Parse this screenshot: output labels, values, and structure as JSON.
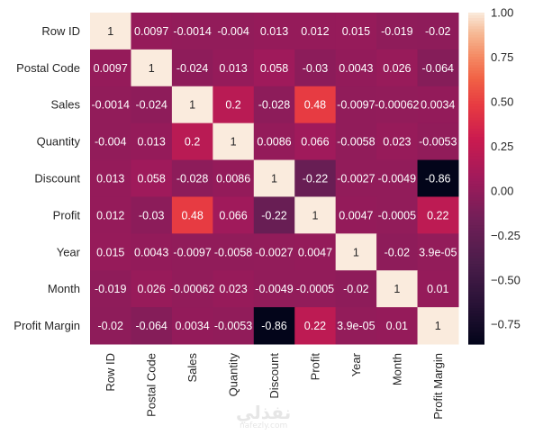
{
  "chart_data": {
    "type": "heatmap",
    "title": "",
    "xlabel": "",
    "ylabel": "",
    "rows": [
      "Row ID",
      "Postal Code",
      "Sales",
      "Quantity",
      "Discount",
      "Profit",
      "Year",
      "Month",
      "Profit Margin"
    ],
    "columns": [
      "Row ID",
      "Postal Code",
      "Sales",
      "Quantity",
      "Discount",
      "Profit",
      "Year",
      "Month",
      "Profit Margin"
    ],
    "values": [
      [
        1,
        0.0097,
        -0.0014,
        -0.004,
        0.013,
        0.012,
        0.015,
        -0.019,
        -0.02
      ],
      [
        0.0097,
        1,
        -0.024,
        0.013,
        0.058,
        -0.03,
        0.0043,
        0.026,
        -0.064
      ],
      [
        -0.0014,
        -0.024,
        1,
        0.2,
        -0.028,
        0.48,
        -0.0097,
        -0.00062,
        0.0034
      ],
      [
        -0.004,
        0.013,
        0.2,
        1,
        0.0086,
        0.066,
        -0.0058,
        0.023,
        -0.0053
      ],
      [
        0.013,
        0.058,
        -0.028,
        0.0086,
        1,
        -0.22,
        -0.0027,
        -0.0049,
        -0.86
      ],
      [
        0.012,
        -0.03,
        0.48,
        0.066,
        -0.22,
        1,
        0.0047,
        -0.0005,
        0.22
      ],
      [
        0.015,
        0.0043,
        -0.0097,
        -0.0058,
        -0.0027,
        0.0047,
        1,
        -0.02,
        3.9e-05
      ],
      [
        -0.019,
        0.026,
        -0.00062,
        0.023,
        -0.0049,
        -0.0005,
        -0.02,
        1,
        0.01
      ],
      [
        -0.02,
        -0.064,
        0.0034,
        -0.0053,
        -0.86,
        0.22,
        3.9e-05,
        0.01,
        1
      ]
    ],
    "annotations": [
      [
        "1",
        "0.0097",
        "-0.0014",
        "-0.004",
        "0.013",
        "0.012",
        "0.015",
        "-0.019",
        "-0.02"
      ],
      [
        "0.0097",
        "1",
        "-0.024",
        "0.013",
        "0.058",
        "-0.03",
        "0.0043",
        "0.026",
        "-0.064"
      ],
      [
        "-0.0014",
        "-0.024",
        "1",
        "0.2",
        "-0.028",
        "0.48",
        "-0.0097",
        "-0.00062",
        "0.0034"
      ],
      [
        "-0.004",
        "0.013",
        "0.2",
        "1",
        "0.0086",
        "0.066",
        "-0.0058",
        "0.023",
        "-0.0053"
      ],
      [
        "0.013",
        "0.058",
        "-0.028",
        "0.0086",
        "1",
        "-0.22",
        "-0.0027",
        "-0.0049",
        "-0.86"
      ],
      [
        "0.012",
        "-0.03",
        "0.48",
        "0.066",
        "-0.22",
        "1",
        "0.0047",
        "-0.0005",
        "0.22"
      ],
      [
        "0.015",
        "0.0043",
        "-0.0097",
        "-0.0058",
        "-0.0027",
        "0.0047",
        "1",
        "-0.02",
        "3.9e-05"
      ],
      [
        "-0.019",
        "0.026",
        "-0.00062",
        "0.023",
        "-0.0049",
        "-0.0005",
        "-0.02",
        "1",
        "0.01"
      ],
      [
        "-0.02",
        "-0.064",
        "0.0034",
        "-0.0053",
        "-0.86",
        "0.22",
        "3.9e-05",
        "0.01",
        "1"
      ]
    ],
    "colorbar": {
      "vmin": -0.86,
      "vmax": 1,
      "ticks": [
        1.0,
        0.75,
        0.5,
        0.25,
        0.0,
        -0.25,
        -0.5,
        -0.75
      ],
      "tick_labels": [
        "1.00",
        "0.75",
        "0.50",
        "0.25",
        "0.00",
        "−0.25",
        "−0.50",
        "−0.75"
      ]
    },
    "colormap": "rocket",
    "grid": false,
    "legend": "colorbar-right"
  },
  "watermark": {
    "main": "نفذلي",
    "sub": "nafezly.com"
  }
}
